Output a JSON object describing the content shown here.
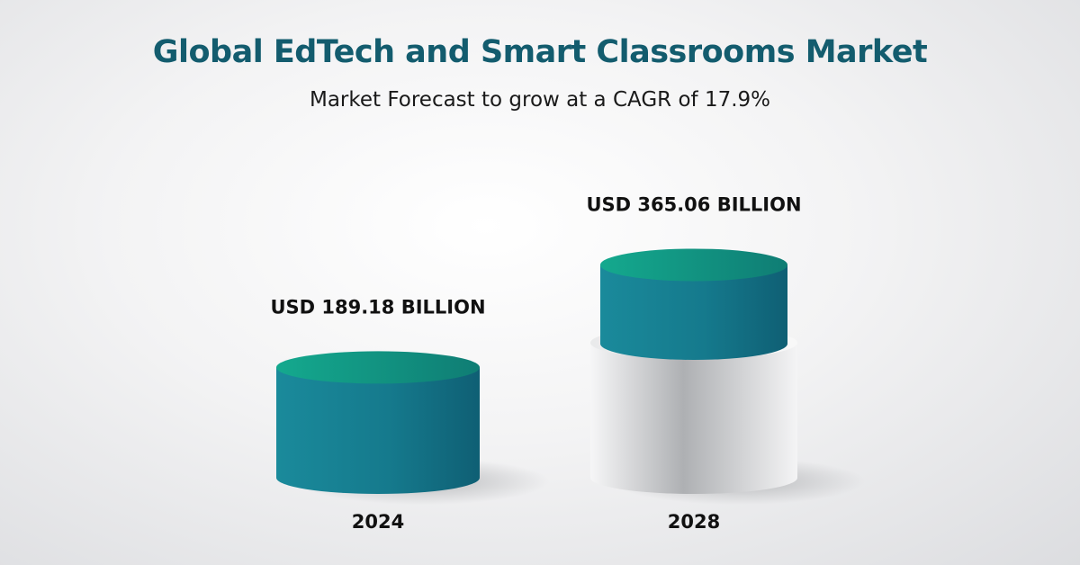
{
  "title": "Global EdTech and Smart Classrooms Market",
  "subtitle": "Market Forecast to grow at a CAGR of 17.9%",
  "colors": {
    "teal_side_dark": "#0f5f74",
    "teal_side_light": "#1a8a9b",
    "teal_top_light": "#14a98e",
    "teal_top_dark": "#0f7d74",
    "gray_side": "#cfd1d3"
  },
  "chart_data": {
    "type": "bar",
    "style": "3d-cylinder",
    "categories": [
      "2024",
      "2028"
    ],
    "values": [
      189.18,
      365.06
    ],
    "value_labels": [
      "USD 189.18 BILLION",
      "USD 365.06 BILLION"
    ],
    "unit": "USD Billion",
    "grid": false,
    "legend": "none"
  }
}
